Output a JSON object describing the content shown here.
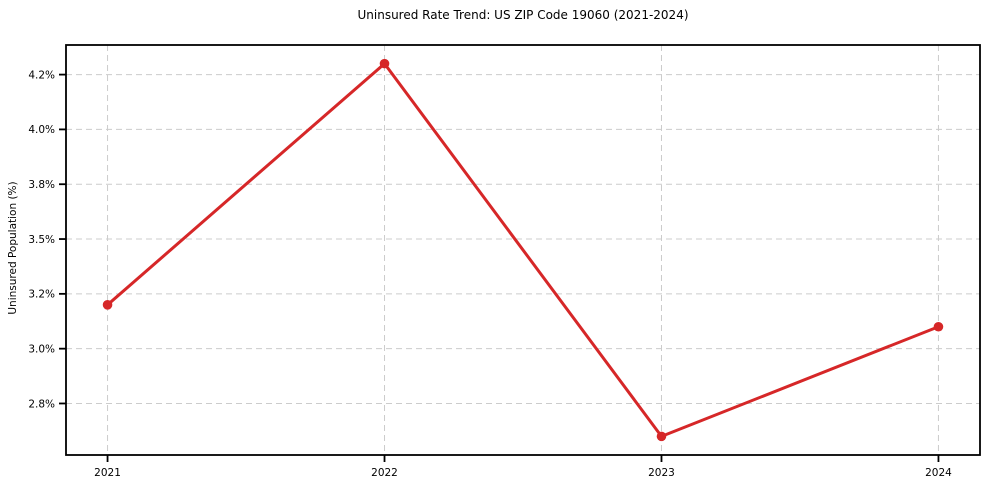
{
  "chart_data": {
    "type": "line",
    "title": "Uninsured Rate Trend: US ZIP Code 19060 (2021-2024)",
    "xlabel": "",
    "ylabel": "Uninsured Population (%)",
    "categories": [
      "2021",
      "2022",
      "2023",
      "2024"
    ],
    "x": [
      2021,
      2022,
      2023,
      2024
    ],
    "series": [
      {
        "values": [
          3.2,
          4.3,
          2.6,
          3.1
        ],
        "color": "#d62728",
        "marker": "circle",
        "line_width": 3,
        "marker_radius": 4.8
      }
    ],
    "y_ticks": [
      {
        "value": 2.75,
        "label": "2.8%"
      },
      {
        "value": 3.0,
        "label": "3.0%"
      },
      {
        "value": 3.25,
        "label": "3.2%"
      },
      {
        "value": 3.5,
        "label": "3.5%"
      },
      {
        "value": 3.75,
        "label": "3.8%"
      },
      {
        "value": 4.0,
        "label": "4.0%"
      },
      {
        "value": 4.25,
        "label": "4.2%"
      }
    ],
    "xlim": [
      2020.85,
      2024.15
    ],
    "ylim": [
      2.515,
      4.385
    ],
    "grid": {
      "visible": true,
      "line_style": "dashed",
      "color": "#cccccc"
    },
    "legend_position": "none",
    "spine_color": "#000000",
    "tick_color": "#000000"
  }
}
